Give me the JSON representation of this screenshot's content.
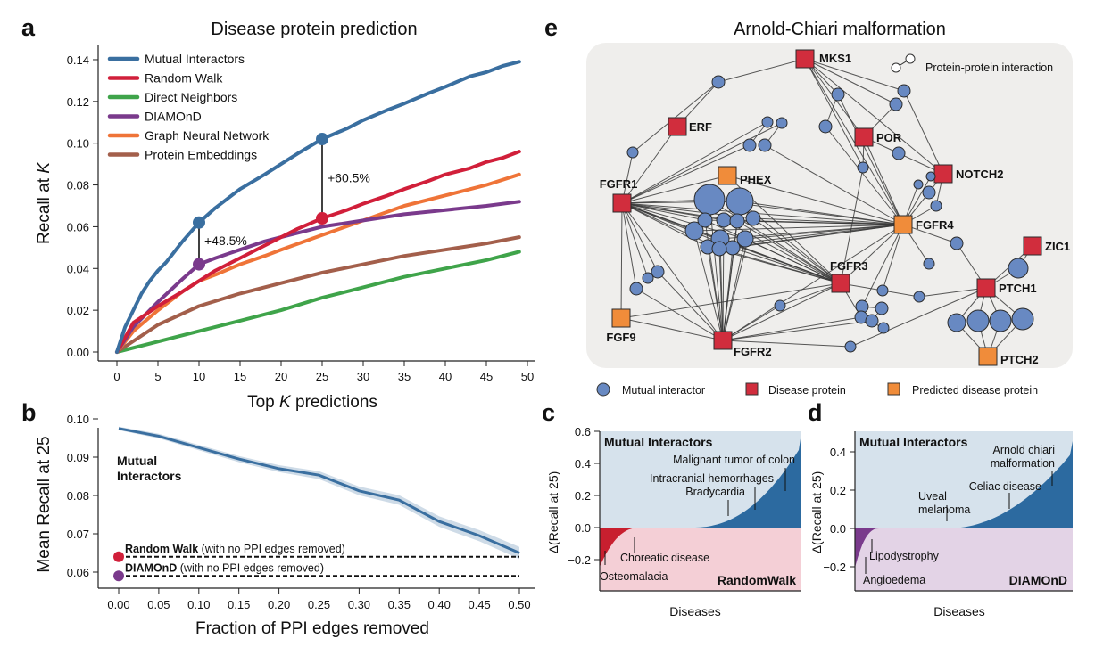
{
  "panels": {
    "a": {
      "letter": "a",
      "title": "Disease protein prediction"
    },
    "b": {
      "letter": "b"
    },
    "c": {
      "letter": "c"
    },
    "d": {
      "letter": "d"
    },
    "e": {
      "letter": "e",
      "title": "Arnold-Chiari malformation"
    }
  },
  "colors": {
    "mutual": "#3a6fa0",
    "random_walk": "#d11f3a",
    "direct": "#3fa44a",
    "diamond": "#7a3a8c",
    "gnn": "#ef7438",
    "protein_emb": "#a35f4b",
    "node_blue": "#6889c2",
    "node_red": "#d12d3d",
    "node_orange": "#f08c3a"
  },
  "chart_data": [
    {
      "panel": "a",
      "type": "line",
      "title": "Disease protein prediction",
      "xlabel_pre": "Top ",
      "xlabel_k": "K",
      "xlabel_post": " predictions",
      "ylabel_pre": "Recall at ",
      "ylabel_k": "K",
      "xlim": [
        0,
        49
      ],
      "ylim": [
        0,
        0.14
      ],
      "xticks": [
        "0",
        "5",
        "10",
        "15",
        "20",
        "25",
        "30",
        "35",
        "40",
        "45",
        "50"
      ],
      "yticks": [
        "0.00",
        "0.02",
        "0.04",
        "0.06",
        "0.08",
        "0.10",
        "0.12",
        "0.14"
      ],
      "legend_position": "top-left",
      "series": [
        {
          "name": "Mutual Interactors",
          "key": "mutual",
          "x": [
            0,
            1,
            2,
            3,
            4,
            5,
            6,
            8,
            10,
            12,
            15,
            18,
            20,
            22,
            25,
            28,
            30,
            33,
            35,
            38,
            40,
            43,
            45,
            47,
            49
          ],
          "y": [
            0,
            0.012,
            0.02,
            0.028,
            0.034,
            0.039,
            0.043,
            0.053,
            0.062,
            0.069,
            0.078,
            0.085,
            0.09,
            0.095,
            0.102,
            0.107,
            0.111,
            0.116,
            0.119,
            0.124,
            0.127,
            0.132,
            0.134,
            0.137,
            0.139
          ]
        },
        {
          "name": "Random Walk",
          "key": "random_walk",
          "x": [
            0,
            2,
            5,
            8,
            10,
            12,
            15,
            18,
            20,
            22,
            25,
            28,
            30,
            33,
            35,
            38,
            40,
            43,
            45,
            47,
            49
          ],
          "y": [
            0,
            0.014,
            0.022,
            0.029,
            0.034,
            0.039,
            0.045,
            0.051,
            0.055,
            0.059,
            0.064,
            0.068,
            0.071,
            0.075,
            0.078,
            0.082,
            0.085,
            0.088,
            0.091,
            0.093,
            0.096
          ]
        },
        {
          "name": "Direct Neighbors",
          "key": "direct",
          "x": [
            0,
            5,
            10,
            15,
            20,
            25,
            30,
            35,
            40,
            45,
            49
          ],
          "y": [
            0,
            0.005,
            0.01,
            0.015,
            0.02,
            0.026,
            0.031,
            0.036,
            0.04,
            0.044,
            0.048
          ]
        },
        {
          "name": "DIAMOnD",
          "key": "diamond",
          "x": [
            0,
            2,
            5,
            8,
            10,
            12,
            15,
            18,
            20,
            25,
            30,
            35,
            40,
            45,
            49
          ],
          "y": [
            0,
            0.012,
            0.024,
            0.035,
            0.042,
            0.045,
            0.049,
            0.053,
            0.055,
            0.06,
            0.063,
            0.066,
            0.068,
            0.07,
            0.072
          ]
        },
        {
          "name": "Graph Neural Network",
          "key": "gnn",
          "x": [
            0,
            2,
            5,
            8,
            10,
            12,
            15,
            18,
            20,
            25,
            30,
            35,
            40,
            45,
            49
          ],
          "y": [
            0,
            0.01,
            0.02,
            0.029,
            0.034,
            0.037,
            0.042,
            0.046,
            0.049,
            0.056,
            0.063,
            0.07,
            0.075,
            0.08,
            0.085
          ]
        },
        {
          "name": "Protein Embeddings",
          "key": "protein_emb",
          "x": [
            0,
            5,
            10,
            15,
            20,
            25,
            30,
            35,
            40,
            45,
            49
          ],
          "y": [
            0,
            0.013,
            0.022,
            0.028,
            0.033,
            0.038,
            0.042,
            0.046,
            0.049,
            0.052,
            0.055
          ]
        }
      ],
      "annotations": [
        {
          "x": 10,
          "y_top": 0.062,
          "y_bottom": 0.042,
          "label": "+48.5%"
        },
        {
          "x": 25,
          "y_top": 0.102,
          "y_bottom": 0.064,
          "label": "+60.5%"
        }
      ]
    },
    {
      "panel": "b",
      "type": "line",
      "xlabel": "Fraction of PPI edges removed",
      "ylabel": "Mean Recall at 25",
      "xlim": [
        0,
        0.5
      ],
      "ylim": [
        0.06,
        0.1
      ],
      "xticks": [
        "0.00",
        "0.05",
        "0.10",
        "0.15",
        "0.20",
        "0.25",
        "0.30",
        "0.35",
        "0.40",
        "0.45",
        "0.50"
      ],
      "yticks": [
        "0.06",
        "0.07",
        "0.08",
        "0.09",
        "0.10"
      ],
      "series_label": [
        "Mutual",
        "Interactors"
      ],
      "series": [
        {
          "key": "mutual",
          "x": [
            0,
            0.05,
            0.1,
            0.15,
            0.2,
            0.25,
            0.3,
            0.35,
            0.4,
            0.45,
            0.5
          ],
          "y": [
            0.0975,
            0.0955,
            0.0925,
            0.0895,
            0.087,
            0.0853,
            0.0812,
            0.0788,
            0.0732,
            0.0695,
            0.065
          ],
          "band": 0.0012
        }
      ],
      "baselines": [
        {
          "name": "Random Walk",
          "note": " (with no PPI edges removed)",
          "value": 0.064,
          "key": "random_walk"
        },
        {
          "name": "DIAMOnD",
          "note": " (with no PPI edges removed)",
          "value": 0.059,
          "key": "diamond"
        }
      ]
    },
    {
      "panel": "c",
      "type": "area",
      "xlabel": "Diseases",
      "ylabel": "Δ(Recall at 25)",
      "ylim": [
        -0.3,
        0.6
      ],
      "yticks": [
        "−0.2",
        "0.0",
        "0.2",
        "0.4",
        "0.6"
      ],
      "top_label": "Mutual Interactors",
      "bottom_label": "RandomWalk",
      "annotations": [
        "Malignant tumor of colon",
        "Intracranial hemorrhages",
        "Bradycardia",
        "Choreatic disease",
        "Osteomalacia"
      ]
    },
    {
      "panel": "d",
      "type": "area",
      "xlabel": "Diseases",
      "ylabel": "Δ(Recall at 25)",
      "ylim": [
        -0.3,
        0.5
      ],
      "yticks": [
        "−0.2",
        "0.0",
        "0.2",
        "0.4"
      ],
      "top_label": "Mutual Interactors",
      "bottom_label": "DIAMOnD",
      "annotations": [
        "Arnold chiari",
        "malformation",
        "Celiac disease",
        "Uveal",
        "melanoma",
        "Lipodystrophy",
        "Angioedema"
      ]
    }
  ],
  "network": {
    "title": "Arnold-Chiari malformation",
    "ppi_legend": "Protein-protein interaction",
    "legend": [
      "Mutual interactor",
      "Disease protein",
      "Predicted disease protein"
    ],
    "labels": {
      "MKS1": "MKS1",
      "ERF": "ERF",
      "POR": "POR",
      "NOTCH2": "NOTCH2",
      "PHEX": "PHEX",
      "FGFR1": "FGFR1",
      "FGFR4": "FGFR4",
      "ZIC1": "ZIC1",
      "FGFR3": "FGFR3",
      "PTCH1": "PTCH1",
      "FGF9": "FGF9",
      "FGFR2": "FGFR2",
      "PTCH2": "PTCH2"
    }
  }
}
